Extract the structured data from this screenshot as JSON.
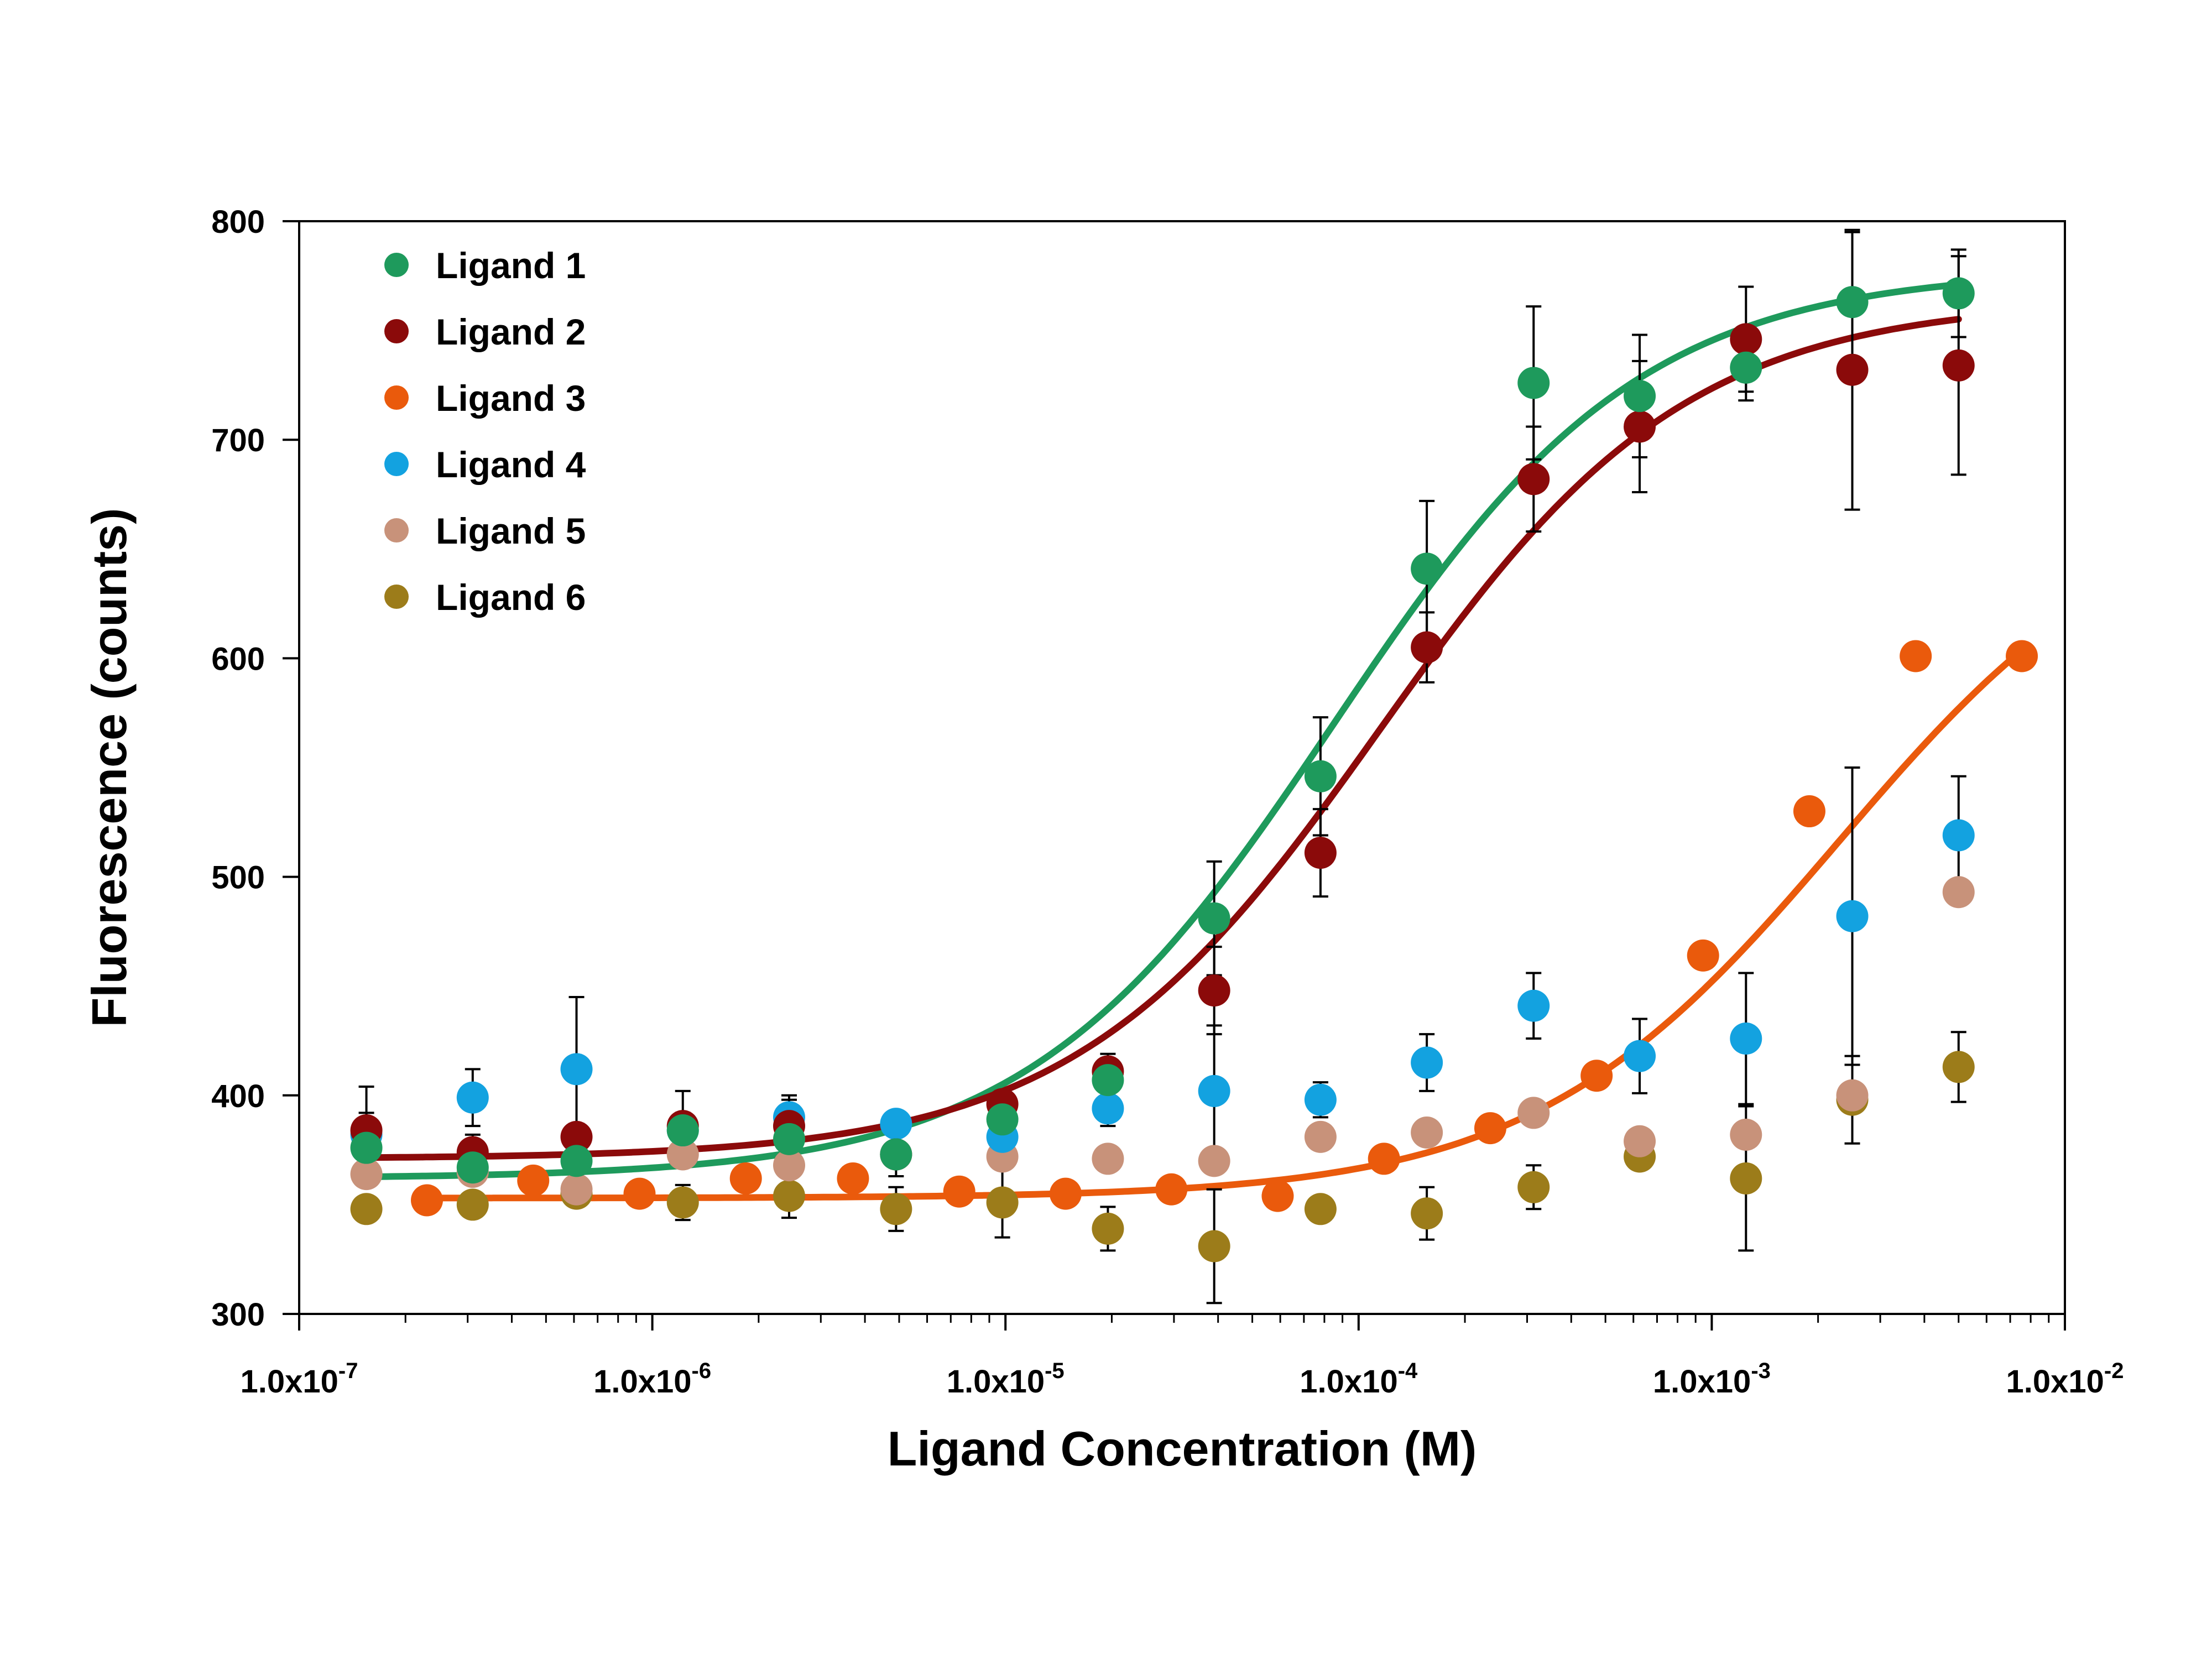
{
  "chart_data": {
    "type": "scatter",
    "xlabel": "Ligand Concentration (M)",
    "ylabel": "Fluorescence (counts)",
    "x_scale": "log",
    "xlim": [
      1e-07,
      0.01
    ],
    "ylim": [
      300,
      800
    ],
    "x_ticks": [
      {
        "value": 1e-07,
        "mantissa": "1.0x10",
        "exp": "-7"
      },
      {
        "value": 1e-06,
        "mantissa": "1.0x10",
        "exp": "-6"
      },
      {
        "value": 1e-05,
        "mantissa": "1.0x10",
        "exp": "-5"
      },
      {
        "value": 0.0001,
        "mantissa": "1.0x10",
        "exp": "-4"
      },
      {
        "value": 0.001,
        "mantissa": "1.0x10",
        "exp": "-3"
      },
      {
        "value": 0.01,
        "mantissa": "1.0x10",
        "exp": "-2"
      }
    ],
    "y_ticks": [
      300,
      400,
      500,
      600,
      700,
      800
    ],
    "grid": false,
    "legend_position": "top-left",
    "series": [
      {
        "name": "Ligand 1",
        "color": "#1e9a5c",
        "x": [
          1.55e-07,
          3.1e-07,
          6.1e-07,
          1.22e-06,
          2.44e-06,
          4.9e-06,
          9.8e-06,
          1.95e-05,
          3.9e-05,
          7.8e-05,
          0.000156,
          0.000313,
          0.000625,
          0.00125,
          0.0025,
          0.005
        ],
        "y": [
          376,
          367,
          370,
          384,
          380,
          373,
          389,
          407,
          481,
          546,
          641,
          726,
          720,
          733,
          763,
          767
        ],
        "yerr": [
          5,
          3,
          10,
          6,
          8,
          5,
          8,
          10,
          26,
          27,
          31,
          35,
          28,
          15,
          32,
          20
        ],
        "fit": {
          "bottom": 362,
          "top": 778,
          "ec50": 8.5e-05,
          "hill": 1.0,
          "xmin": 1.55e-07,
          "xmax": 0.005
        }
      },
      {
        "name": "Ligand 2",
        "color": "#8b0a0a",
        "x": [
          1.55e-07,
          3.1e-07,
          6.1e-07,
          1.22e-06,
          2.44e-06,
          4.9e-06,
          9.8e-06,
          1.95e-05,
          3.9e-05,
          7.8e-05,
          0.000156,
          0.000313,
          0.000625,
          0.00125,
          0.0025,
          0.005
        ],
        "y": [
          384,
          374,
          381,
          386,
          386,
          373,
          396,
          411,
          448,
          511,
          605,
          682,
          706,
          746,
          732,
          734
        ],
        "yerr": [
          20,
          8,
          6,
          16,
          12,
          10,
          6,
          8,
          20,
          20,
          16,
          24,
          30,
          24,
          64,
          50
        ],
        "fit": {
          "bottom": 371,
          "top": 764,
          "ec50": 0.000115,
          "hill": 1.0,
          "xmin": 1.55e-07,
          "xmax": 0.005
        }
      },
      {
        "name": "Ligand 3",
        "color": "#ea5a0c",
        "x": [
          2.3e-07,
          4.6e-07,
          9.2e-07,
          1.84e-06,
          3.7e-06,
          7.4e-06,
          1.48e-05,
          2.95e-05,
          5.9e-05,
          0.000118,
          0.000236,
          0.000472,
          0.000945,
          0.00189,
          0.00378,
          0.00755
        ],
        "y": [
          352,
          361,
          355,
          362,
          362,
          356,
          355,
          357,
          354,
          371,
          385,
          409,
          464,
          530,
          601,
          601
        ],
        "yerr": [],
        "fit": {
          "bottom": 353,
          "top": 680,
          "ec50": 0.0023,
          "hill": 1.0,
          "xmin": 2.3e-07,
          "xmax": 0.0072
        }
      },
      {
        "name": "Ligand 4",
        "color": "#13a2e0",
        "x": [
          1.55e-07,
          3.1e-07,
          6.1e-07,
          1.22e-06,
          2.44e-06,
          4.9e-06,
          9.8e-06,
          1.95e-05,
          3.9e-05,
          7.8e-05,
          0.000156,
          0.000313,
          0.000625,
          0.00125,
          0.0025,
          0.005
        ],
        "y": [
          382,
          399,
          412,
          384,
          390,
          387,
          381,
          394,
          402,
          398,
          415,
          441,
          418,
          426,
          482,
          519
        ],
        "yerr": [
          10,
          13,
          33,
          8,
          10,
          5,
          6,
          8,
          30,
          8,
          13,
          15,
          17,
          30,
          68,
          27
        ],
        "fit": null
      },
      {
        "name": "Ligand 5",
        "color": "#c8927a",
        "x": [
          1.55e-07,
          3.1e-07,
          6.1e-07,
          1.22e-06,
          2.44e-06,
          4.9e-06,
          9.8e-06,
          1.95e-05,
          3.9e-05,
          7.8e-05,
          0.000156,
          0.000313,
          0.000625,
          0.00125,
          0.0025,
          0.005
        ],
        "y": [
          364,
          365,
          357,
          373,
          368,
          373,
          372,
          371,
          370,
          381,
          383,
          392,
          379,
          382,
          400,
          493
        ],
        "yerr": [],
        "fit": null
      },
      {
        "name": "Ligand 6",
        "color": "#9c7c1a",
        "x": [
          1.55e-07,
          3.1e-07,
          6.1e-07,
          1.22e-06,
          2.44e-06,
          4.9e-06,
          9.8e-06,
          1.95e-05,
          3.9e-05,
          7.8e-05,
          0.000156,
          0.000313,
          0.000625,
          0.00125,
          0.0025,
          0.005
        ],
        "y": [
          348,
          350,
          355,
          351,
          354,
          348,
          351,
          339,
          331,
          348,
          346,
          358,
          372,
          362,
          398,
          413
        ],
        "yerr": [
          0,
          0,
          0,
          8,
          10,
          10,
          16,
          10,
          26,
          0,
          12,
          10,
          0,
          33,
          20,
          16
        ],
        "fit": null
      }
    ]
  }
}
